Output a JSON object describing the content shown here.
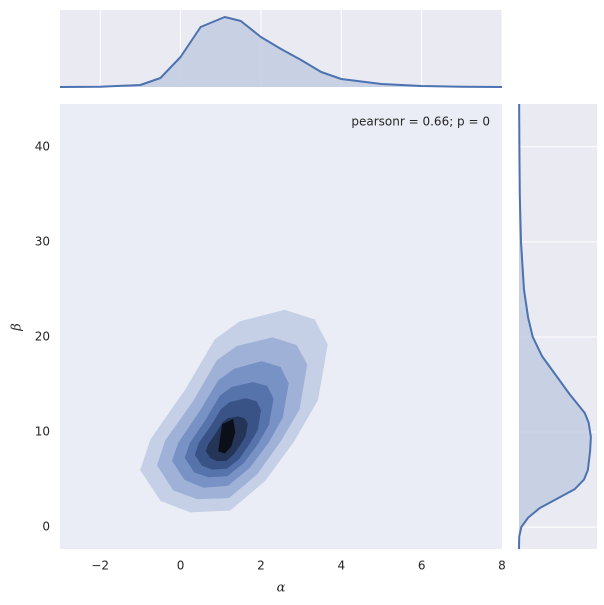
{
  "chart_data": {
    "type": "kde_joint",
    "annotation": "pearsonr = 0.66; p = 0",
    "xlabel": "α",
    "ylabel": "β",
    "xlim": [
      -3,
      8
    ],
    "ylim": [
      -2.3,
      44.5
    ],
    "xticks": [
      {
        "value": -2,
        "label": "−2"
      },
      0,
      2,
      4,
      6,
      8
    ],
    "yticks": [
      0,
      10,
      20,
      30,
      40
    ],
    "line_color": "#4c72b0",
    "fill_color": "#c2cbe2",
    "contours": [
      {
        "color": "#c5cfe5",
        "x": [
          -0.99,
          -0.74,
          0.12,
          0.86,
          1.48,
          2.59,
          3.33,
          3.65,
          3.41,
          2.84,
          2.1,
          1.23,
          0.25,
          -0.49
        ],
        "y": [
          6.0,
          9.2,
          14.4,
          19.7,
          21.6,
          22.8,
          21.8,
          19.2,
          13.4,
          9.2,
          4.9,
          1.8,
          1.6,
          2.8
        ]
      },
      {
        "color": "#9fb1d6",
        "x": [
          -0.57,
          -0.37,
          0.32,
          0.91,
          1.4,
          2.29,
          2.88,
          3.14,
          2.95,
          2.49,
          1.9,
          1.2,
          0.42,
          -0.17
        ],
        "y": [
          6.5,
          9.1,
          13.2,
          17.5,
          19.0,
          19.9,
          19.1,
          17.1,
          12.4,
          9.1,
          5.6,
          3.1,
          3.0,
          3.9
        ]
      },
      {
        "color": "#7892c5",
        "x": [
          -0.2,
          -0.04,
          0.49,
          0.95,
          1.34,
          2.02,
          2.48,
          2.68,
          2.53,
          2.18,
          1.72,
          1.18,
          0.57,
          0.11
        ],
        "y": [
          7.0,
          8.9,
          12.2,
          15.4,
          16.6,
          17.4,
          16.8,
          15.1,
          11.5,
          8.9,
          6.3,
          4.4,
          4.2,
          5.0
        ]
      },
      {
        "color": "#5673ab",
        "x": [
          0.12,
          0.24,
          0.64,
          0.99,
          1.28,
          1.8,
          2.15,
          2.3,
          2.19,
          1.92,
          1.57,
          1.16,
          0.7,
          0.35
        ],
        "y": [
          7.3,
          8.8,
          11.3,
          13.8,
          14.7,
          15.2,
          14.8,
          13.5,
          10.8,
          8.8,
          6.8,
          5.4,
          5.3,
          5.8
        ]
      },
      {
        "color": "#3a5387",
        "x": [
          0.37,
          0.46,
          0.76,
          1.02,
          1.23,
          1.62,
          1.88,
          1.99,
          1.91,
          1.71,
          1.45,
          1.15,
          0.8,
          0.54
        ],
        "y": [
          7.6,
          8.8,
          10.6,
          12.4,
          13.1,
          13.5,
          13.2,
          12.3,
          10.2,
          8.8,
          7.2,
          6.2,
          6.1,
          6.5
        ]
      },
      {
        "color": "#243558",
        "x": [
          0.64,
          0.7,
          0.88,
          1.05,
          1.18,
          1.43,
          1.59,
          1.66,
          1.61,
          1.48,
          1.32,
          1.13,
          0.91,
          0.75
        ],
        "y": [
          8.0,
          8.7,
          9.8,
          11.0,
          11.4,
          11.6,
          11.4,
          10.9,
          9.6,
          8.7,
          7.7,
          7.0,
          7.0,
          7.3
        ]
      },
      {
        "color": "#0b0f18",
        "x": [
          0.95,
          1.0,
          1.05,
          1.3,
          1.35,
          1.25,
          1.1
        ],
        "y": [
          8.0,
          9.5,
          10.8,
          11.3,
          10.0,
          8.5,
          7.8
        ]
      }
    ],
    "marginal_x": {
      "ylim": [
        0,
        0.385
      ],
      "x": [
        -3,
        -2,
        -1,
        -0.5,
        0,
        0.5,
        1.1,
        1.5,
        2,
        2.5,
        3,
        3.5,
        4,
        5,
        6,
        7,
        8
      ],
      "values": [
        0,
        0.001,
        0.01,
        0.045,
        0.15,
        0.3,
        0.35,
        0.33,
        0.25,
        0.19,
        0.135,
        0.075,
        0.04,
        0.015,
        0.005,
        0.001,
        0
      ]
    },
    "marginal_y": {
      "xlim": [
        0,
        0.102
      ],
      "y": [
        -2.3,
        -1,
        0,
        1,
        2,
        3,
        4,
        5,
        6,
        8,
        9.5,
        11,
        12,
        14,
        16,
        18,
        20,
        22,
        25,
        30,
        35,
        40,
        44.5
      ],
      "values": [
        0,
        0.0003,
        0.003,
        0.012,
        0.027,
        0.05,
        0.073,
        0.085,
        0.09,
        0.093,
        0.094,
        0.091,
        0.086,
        0.066,
        0.048,
        0.03,
        0.018,
        0.012,
        0.0065,
        0.0026,
        0.001,
        0.0005,
        0.0002
      ]
    }
  }
}
